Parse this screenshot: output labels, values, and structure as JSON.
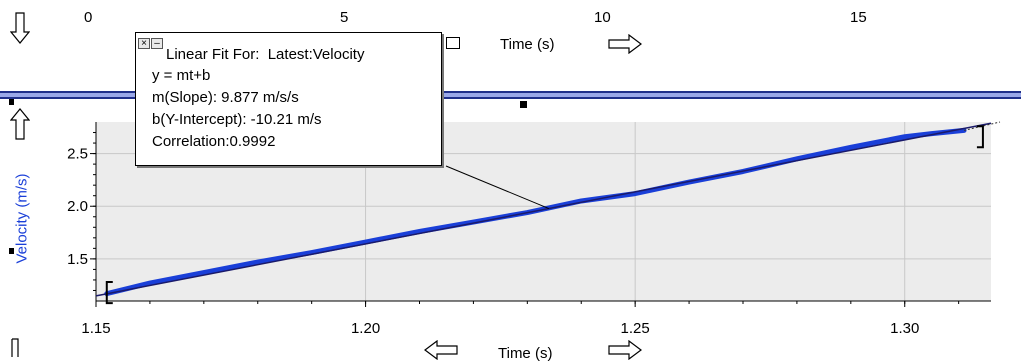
{
  "top_axis": {
    "ticks": [
      "0",
      "5",
      "10",
      "15"
    ],
    "label": "Time (s)"
  },
  "bottom_axis": {
    "label": "Time (s)"
  },
  "graph": {
    "ylabel": "Velocity (m/s)"
  },
  "linear_fit": {
    "title_prefix": "Linear Fit For:",
    "title_source": "Latest:Velocity",
    "equation": "y = mt+b",
    "slope": "m(Slope): 9.877 m/s/s",
    "intercept": "b(Y-Intercept): -10.21 m/s",
    "correlation": "Correlation:0.9992",
    "close_glyph": "×",
    "minimize_glyph": "–"
  },
  "colors": {
    "data_line": "#1a3fd8",
    "fit_line": "#1a1a6a",
    "plot_bg": "#ececec",
    "divider": "#9aa8e8"
  },
  "icons": [
    "scroll-down-arrow-icon",
    "scroll-up-arrow-icon",
    "scroll-right-arrow-icon",
    "scroll-left-arrow-icon",
    "close-icon",
    "minimize-icon"
  ],
  "chart_data": {
    "type": "line",
    "xlabel": "Time (s)",
    "ylabel": "Velocity (m/s)",
    "xlim": [
      1.15,
      1.316
    ],
    "ylim": [
      1.1,
      2.8
    ],
    "x_ticks": [
      "1.15",
      "1.20",
      "1.25",
      "1.30"
    ],
    "y_ticks": [
      "1.5",
      "2.0",
      "2.5"
    ],
    "grid": true,
    "series": [
      {
        "x": [
          1.152,
          1.16,
          1.17,
          1.18,
          1.19,
          1.2,
          1.21,
          1.22,
          1.23,
          1.24,
          1.25,
          1.26,
          1.27,
          1.28,
          1.29,
          1.3,
          1.305,
          1.311
        ],
        "y": [
          1.17,
          1.27,
          1.37,
          1.47,
          1.56,
          1.66,
          1.76,
          1.85,
          1.94,
          2.05,
          2.12,
          2.23,
          2.33,
          2.45,
          2.56,
          2.66,
          2.69,
          2.72
        ]
      }
    ],
    "fit": {
      "slope": 9.877,
      "intercept": -10.21,
      "x_range": [
        1.15,
        1.316
      ]
    }
  }
}
